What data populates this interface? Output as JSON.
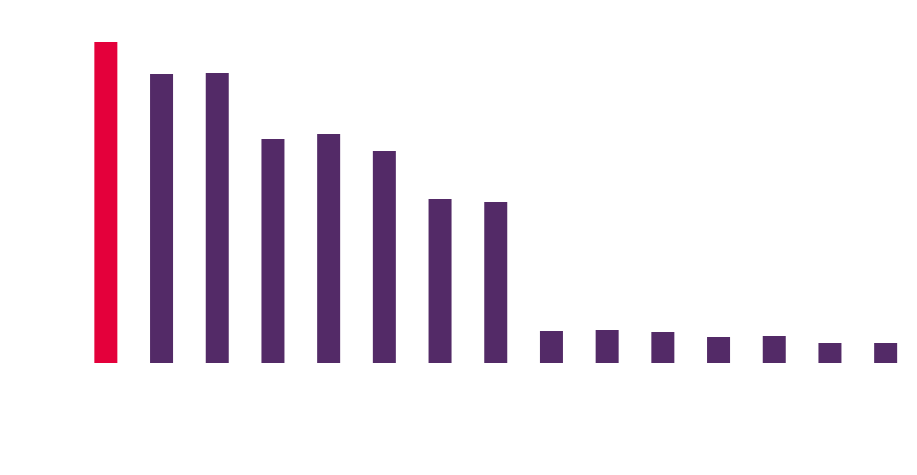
{
  "chart_data": {
    "type": "bar",
    "categories": [
      null,
      null,
      null,
      null,
      null,
      null,
      null,
      null,
      null,
      null,
      null,
      null,
      null,
      null,
      null
    ],
    "values": [
      321,
      289,
      290,
      224,
      229,
      212,
      164,
      161,
      32,
      33,
      31,
      26,
      27,
      20,
      20
    ],
    "colors": [
      "#e4003b",
      "#532a67",
      "#532a67",
      "#532a67",
      "#532a67",
      "#532a67",
      "#532a67",
      "#532a67",
      "#532a67",
      "#532a67",
      "#532a67",
      "#532a67",
      "#532a67",
      "#532a67",
      "#532a67"
    ],
    "ylim": [
      0,
      321
    ]
  }
}
